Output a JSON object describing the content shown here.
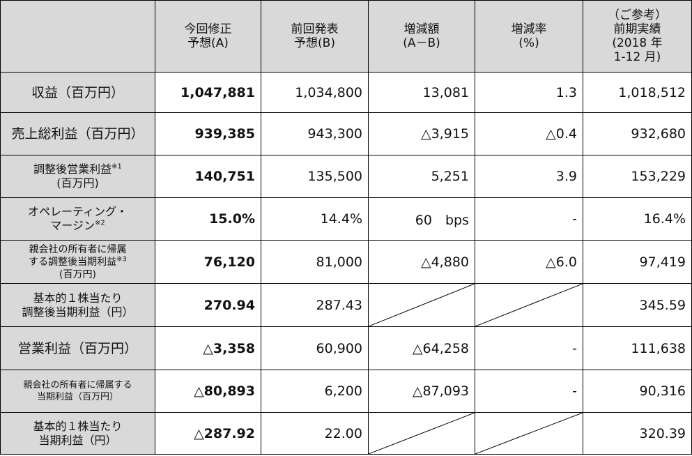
{
  "header": {
    "col_a": [
      "今回修正",
      "予想(A)"
    ],
    "col_b": [
      "前回発表",
      "予想(B)"
    ],
    "col_diff": [
      "増減額",
      "(A－B)"
    ],
    "col_rate": [
      "増減率",
      "(%)"
    ],
    "col_ref": [
      "（ご参考）",
      "前期実績",
      "(2018 年",
      "1-12 月)"
    ]
  },
  "rows": [
    {
      "label": [
        "収益（百万円）"
      ],
      "sup": "",
      "a": "1,047,881",
      "b": "1,034,800",
      "diff": "13,081",
      "rate": "1.3",
      "ref": "1,018,512"
    },
    {
      "label": [
        "売上総利益（百万円）"
      ],
      "sup": "",
      "a": "939,385",
      "b": "943,300",
      "diff": "△3,915",
      "rate": "△0.4",
      "ref": "932,680"
    },
    {
      "label": [
        "調整後営業利益",
        "(百万円)"
      ],
      "sup": "※1",
      "a": "140,751",
      "b": "135,500",
      "diff": "5,251",
      "rate": "3.9",
      "ref": "153,229"
    },
    {
      "label": [
        "オペレーティング・",
        "マージン"
      ],
      "sup": "※2",
      "a": "15.0%",
      "b": "14.4%",
      "diff": "60　bps",
      "rate": "-",
      "ref": "16.4%"
    },
    {
      "label": [
        "親会社の所有者に帰属",
        "する調整後当期利益",
        "(百万円)"
      ],
      "sup": "※3",
      "a": "76,120",
      "b": "81,000",
      "diff": "△4,880",
      "rate": "△6.0",
      "ref": "97,419"
    },
    {
      "label": [
        "基本的１株当たり",
        "調整後当期利益（円）"
      ],
      "sup": "",
      "a": "270.94",
      "b": "287.43",
      "diff": "",
      "rate": "",
      "ref": "345.59"
    },
    {
      "label": [
        "営業利益（百万円）"
      ],
      "sup": "",
      "a": "△3,358",
      "b": "60,900",
      "diff": "△64,258",
      "rate": "-",
      "ref": "111,638"
    },
    {
      "label": [
        "親会社の所有者に帰属する",
        "当期利益（百万円）"
      ],
      "sup": "",
      "a": "△80,893",
      "b": "6,200",
      "diff": "△87,093",
      "rate": "-",
      "ref": "90,316"
    },
    {
      "label": [
        "基本的１株当たり",
        "当期利益（円）"
      ],
      "sup": "",
      "a": "△287.92",
      "b": "22.00",
      "diff": "",
      "rate": "",
      "ref": "320.39"
    }
  ]
}
